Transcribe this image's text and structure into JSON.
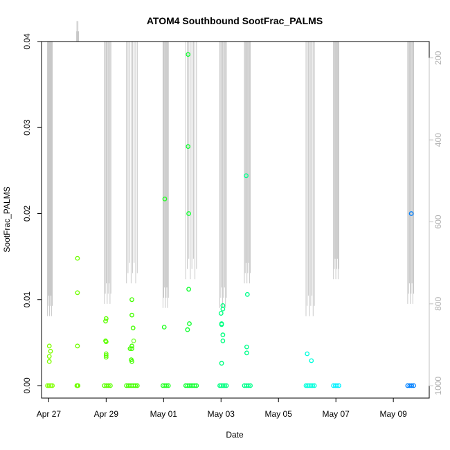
{
  "chart_data": {
    "type": "scatter",
    "title": "ATOM4 Southbound SootFrac_PALMS",
    "xlabel": "Date",
    "ylabel": "SootFrac_PALMS",
    "xlim": [
      "2016-04-26T18:00",
      "2016-05-10T06:00"
    ],
    "ylim": [
      0,
      0.04
    ],
    "x_ticks": [
      {
        "date": "2016-04-27",
        "label": "Apr 27"
      },
      {
        "date": "2016-04-29",
        "label": "Apr 29"
      },
      {
        "date": "2016-05-01",
        "label": "May 01"
      },
      {
        "date": "2016-05-03",
        "label": "May 03"
      },
      {
        "date": "2016-05-05",
        "label": "May 05"
      },
      {
        "date": "2016-05-07",
        "label": "May 07"
      },
      {
        "date": "2016-05-09",
        "label": "May 09"
      }
    ],
    "y_ticks": [
      "0.00",
      "0.01",
      "0.02",
      "0.03",
      "0.04"
    ],
    "secondary_axis": {
      "side": "right",
      "reversed": true,
      "ylim": [
        1030,
        160
      ],
      "ticks": [
        "200",
        "400",
        "600",
        "800",
        "1000"
      ],
      "color": "#c0c0c0"
    },
    "grid": false,
    "legend": "none",
    "color_scale": "time (green to blue)",
    "points": [
      {
        "t": "2016-04-27T00:30",
        "y": 0.0046,
        "c": "#80ff00"
      },
      {
        "t": "2016-04-27T00:30",
        "y": 0.0034,
        "c": "#80ff00"
      },
      {
        "t": "2016-04-27T00:30",
        "y": 0.0028,
        "c": "#80ff00"
      },
      {
        "t": "2016-04-27T01:30",
        "y": 0.004,
        "c": "#80ff00"
      },
      {
        "t": "2016-04-28T00:00",
        "y": 0.0148,
        "c": "#70ff00"
      },
      {
        "t": "2016-04-28T00:00",
        "y": 0.0108,
        "c": "#70ff00"
      },
      {
        "t": "2016-04-28T00:00",
        "y": 0.0046,
        "c": "#70ff00"
      },
      {
        "t": "2016-04-28T23:30",
        "y": 0.0075,
        "c": "#5cff00"
      },
      {
        "t": "2016-04-28T23:30",
        "y": 0.0052,
        "c": "#5cff00"
      },
      {
        "t": "2016-04-29T00:00",
        "y": 0.0078,
        "c": "#5cff00"
      },
      {
        "t": "2016-04-29T00:00",
        "y": 0.0051,
        "c": "#5cff00"
      },
      {
        "t": "2016-04-29T00:00",
        "y": 0.0037,
        "c": "#5cff00"
      },
      {
        "t": "2016-04-29T00:00",
        "y": 0.0035,
        "c": "#5cff00"
      },
      {
        "t": "2016-04-29T00:00",
        "y": 0.0033,
        "c": "#5cff00"
      },
      {
        "t": "2016-04-29T20:00",
        "y": 0.0043,
        "c": "#44ff00"
      },
      {
        "t": "2016-04-29T21:00",
        "y": 0.003,
        "c": "#44ff00"
      },
      {
        "t": "2016-04-29T21:30",
        "y": 0.01,
        "c": "#44ff00"
      },
      {
        "t": "2016-04-29T21:30",
        "y": 0.0082,
        "c": "#44ff00"
      },
      {
        "t": "2016-04-29T21:30",
        "y": 0.0046,
        "c": "#44ff00"
      },
      {
        "t": "2016-04-29T21:30",
        "y": 0.0043,
        "c": "#44ff00"
      },
      {
        "t": "2016-04-29T21:30",
        "y": 0.0028,
        "c": "#44ff00"
      },
      {
        "t": "2016-04-29T22:30",
        "y": 0.0067,
        "c": "#44ff00"
      },
      {
        "t": "2016-04-29T23:00",
        "y": 0.0052,
        "c": "#80ff40"
      },
      {
        "t": "2016-05-01T01:00",
        "y": 0.0217,
        "c": "#22ff22"
      },
      {
        "t": "2016-05-01T00:30",
        "y": 0.0068,
        "c": "#22ff22"
      },
      {
        "t": "2016-05-01T20:30",
        "y": 0.0385,
        "c": "#10ff30"
      },
      {
        "t": "2016-05-01T20:30",
        "y": 0.0278,
        "c": "#10ff30"
      },
      {
        "t": "2016-05-01T21:00",
        "y": 0.02,
        "c": "#10ff30"
      },
      {
        "t": "2016-05-01T21:00",
        "y": 0.0112,
        "c": "#10ff30"
      },
      {
        "t": "2016-05-01T21:30",
        "y": 0.0072,
        "c": "#10ff30"
      },
      {
        "t": "2016-05-01T20:00",
        "y": 0.0065,
        "c": "#10ff30"
      },
      {
        "t": "2016-05-03T00:00",
        "y": 0.0084,
        "c": "#00ff80"
      },
      {
        "t": "2016-05-03T01:30",
        "y": 0.0093,
        "c": "#00ff80"
      },
      {
        "t": "2016-05-03T01:30",
        "y": 0.0089,
        "c": "#00ff80"
      },
      {
        "t": "2016-05-03T00:30",
        "y": 0.0072,
        "c": "#00ff80"
      },
      {
        "t": "2016-05-03T00:30",
        "y": 0.0071,
        "c": "#00ff80"
      },
      {
        "t": "2016-05-03T01:30",
        "y": 0.0059,
        "c": "#00ff80"
      },
      {
        "t": "2016-05-03T01:30",
        "y": 0.0052,
        "c": "#00ff80"
      },
      {
        "t": "2016-05-03T00:30",
        "y": 0.0026,
        "c": "#00ff80"
      },
      {
        "t": "2016-05-03T21:00",
        "y": 0.0244,
        "c": "#00ff8c"
      },
      {
        "t": "2016-05-03T22:00",
        "y": 0.0106,
        "c": "#00ff8c"
      },
      {
        "t": "2016-05-03T21:30",
        "y": 0.0045,
        "c": "#00ff8c"
      },
      {
        "t": "2016-05-03T21:30",
        "y": 0.0038,
        "c": "#00ff8c"
      },
      {
        "t": "2016-05-06T00:00",
        "y": 0.0037,
        "c": "#00ffdc"
      },
      {
        "t": "2016-05-06T03:30",
        "y": 0.0029,
        "c": "#00ffdc"
      },
      {
        "t": "2016-05-09T15:00",
        "y": 0.02,
        "c": "#0080ff"
      }
    ],
    "zero_clusters": [
      {
        "from": "2016-04-26T23:00",
        "to": "2016-04-27T03:00",
        "c": "#80ff00"
      },
      {
        "from": "2016-04-27T23:30",
        "to": "2016-04-28T00:30",
        "c": "#70ff00"
      },
      {
        "from": "2016-04-28T22:30",
        "to": "2016-04-29T03:30",
        "c": "#5cff00"
      },
      {
        "from": "2016-04-29T17:00",
        "to": "2016-04-30T02:00",
        "c": "#44ff00"
      },
      {
        "from": "2016-04-30T23:30",
        "to": "2016-05-01T04:00",
        "c": "#22ff22"
      },
      {
        "from": "2016-05-01T18:30",
        "to": "2016-05-02T03:30",
        "c": "#10ff30"
      },
      {
        "from": "2016-05-02T23:00",
        "to": "2016-05-03T04:30",
        "c": "#00ff80"
      },
      {
        "from": "2016-05-03T19:30",
        "to": "2016-05-04T00:30",
        "c": "#00ff8c"
      },
      {
        "from": "2016-05-05T23:00",
        "to": "2016-05-06T06:00",
        "c": "#00ffdc"
      },
      {
        "from": "2016-05-06T22:00",
        "to": "2016-05-07T02:30",
        "c": "#00f0ff"
      },
      {
        "from": "2016-05-09T12:00",
        "to": "2016-05-09T17:00",
        "c": "#0080ff"
      }
    ],
    "pressure_profiles": [
      {
        "t0": "2016-04-26T23:00",
        "t1": "2016-04-27T03:00",
        "bottom": 830
      },
      {
        "t0": "2016-04-27T23:00",
        "t1": "2016-04-28T01:00",
        "bottom": 160
      },
      {
        "t0": "2016-04-28T22:30",
        "t1": "2016-04-29T04:00",
        "bottom": 800
      },
      {
        "t0": "2016-04-29T17:00",
        "t1": "2016-04-30T02:00",
        "bottom": 750
      },
      {
        "t0": "2016-04-30T23:30",
        "t1": "2016-05-01T04:00",
        "bottom": 810
      },
      {
        "t0": "2016-05-01T18:30",
        "t1": "2016-05-02T03:30",
        "bottom": 740
      },
      {
        "t0": "2016-05-02T23:00",
        "t1": "2016-05-03T04:30",
        "bottom": 810
      },
      {
        "t0": "2016-05-03T19:30",
        "t1": "2016-05-04T00:30",
        "bottom": 750
      },
      {
        "t0": "2016-05-05T23:00",
        "t1": "2016-05-06T06:00",
        "bottom": 830
      },
      {
        "t0": "2016-05-06T22:00",
        "t1": "2016-05-07T02:30",
        "bottom": 740
      },
      {
        "t0": "2016-05-09T12:00",
        "t1": "2016-05-09T17:00",
        "bottom": 800
      }
    ]
  }
}
